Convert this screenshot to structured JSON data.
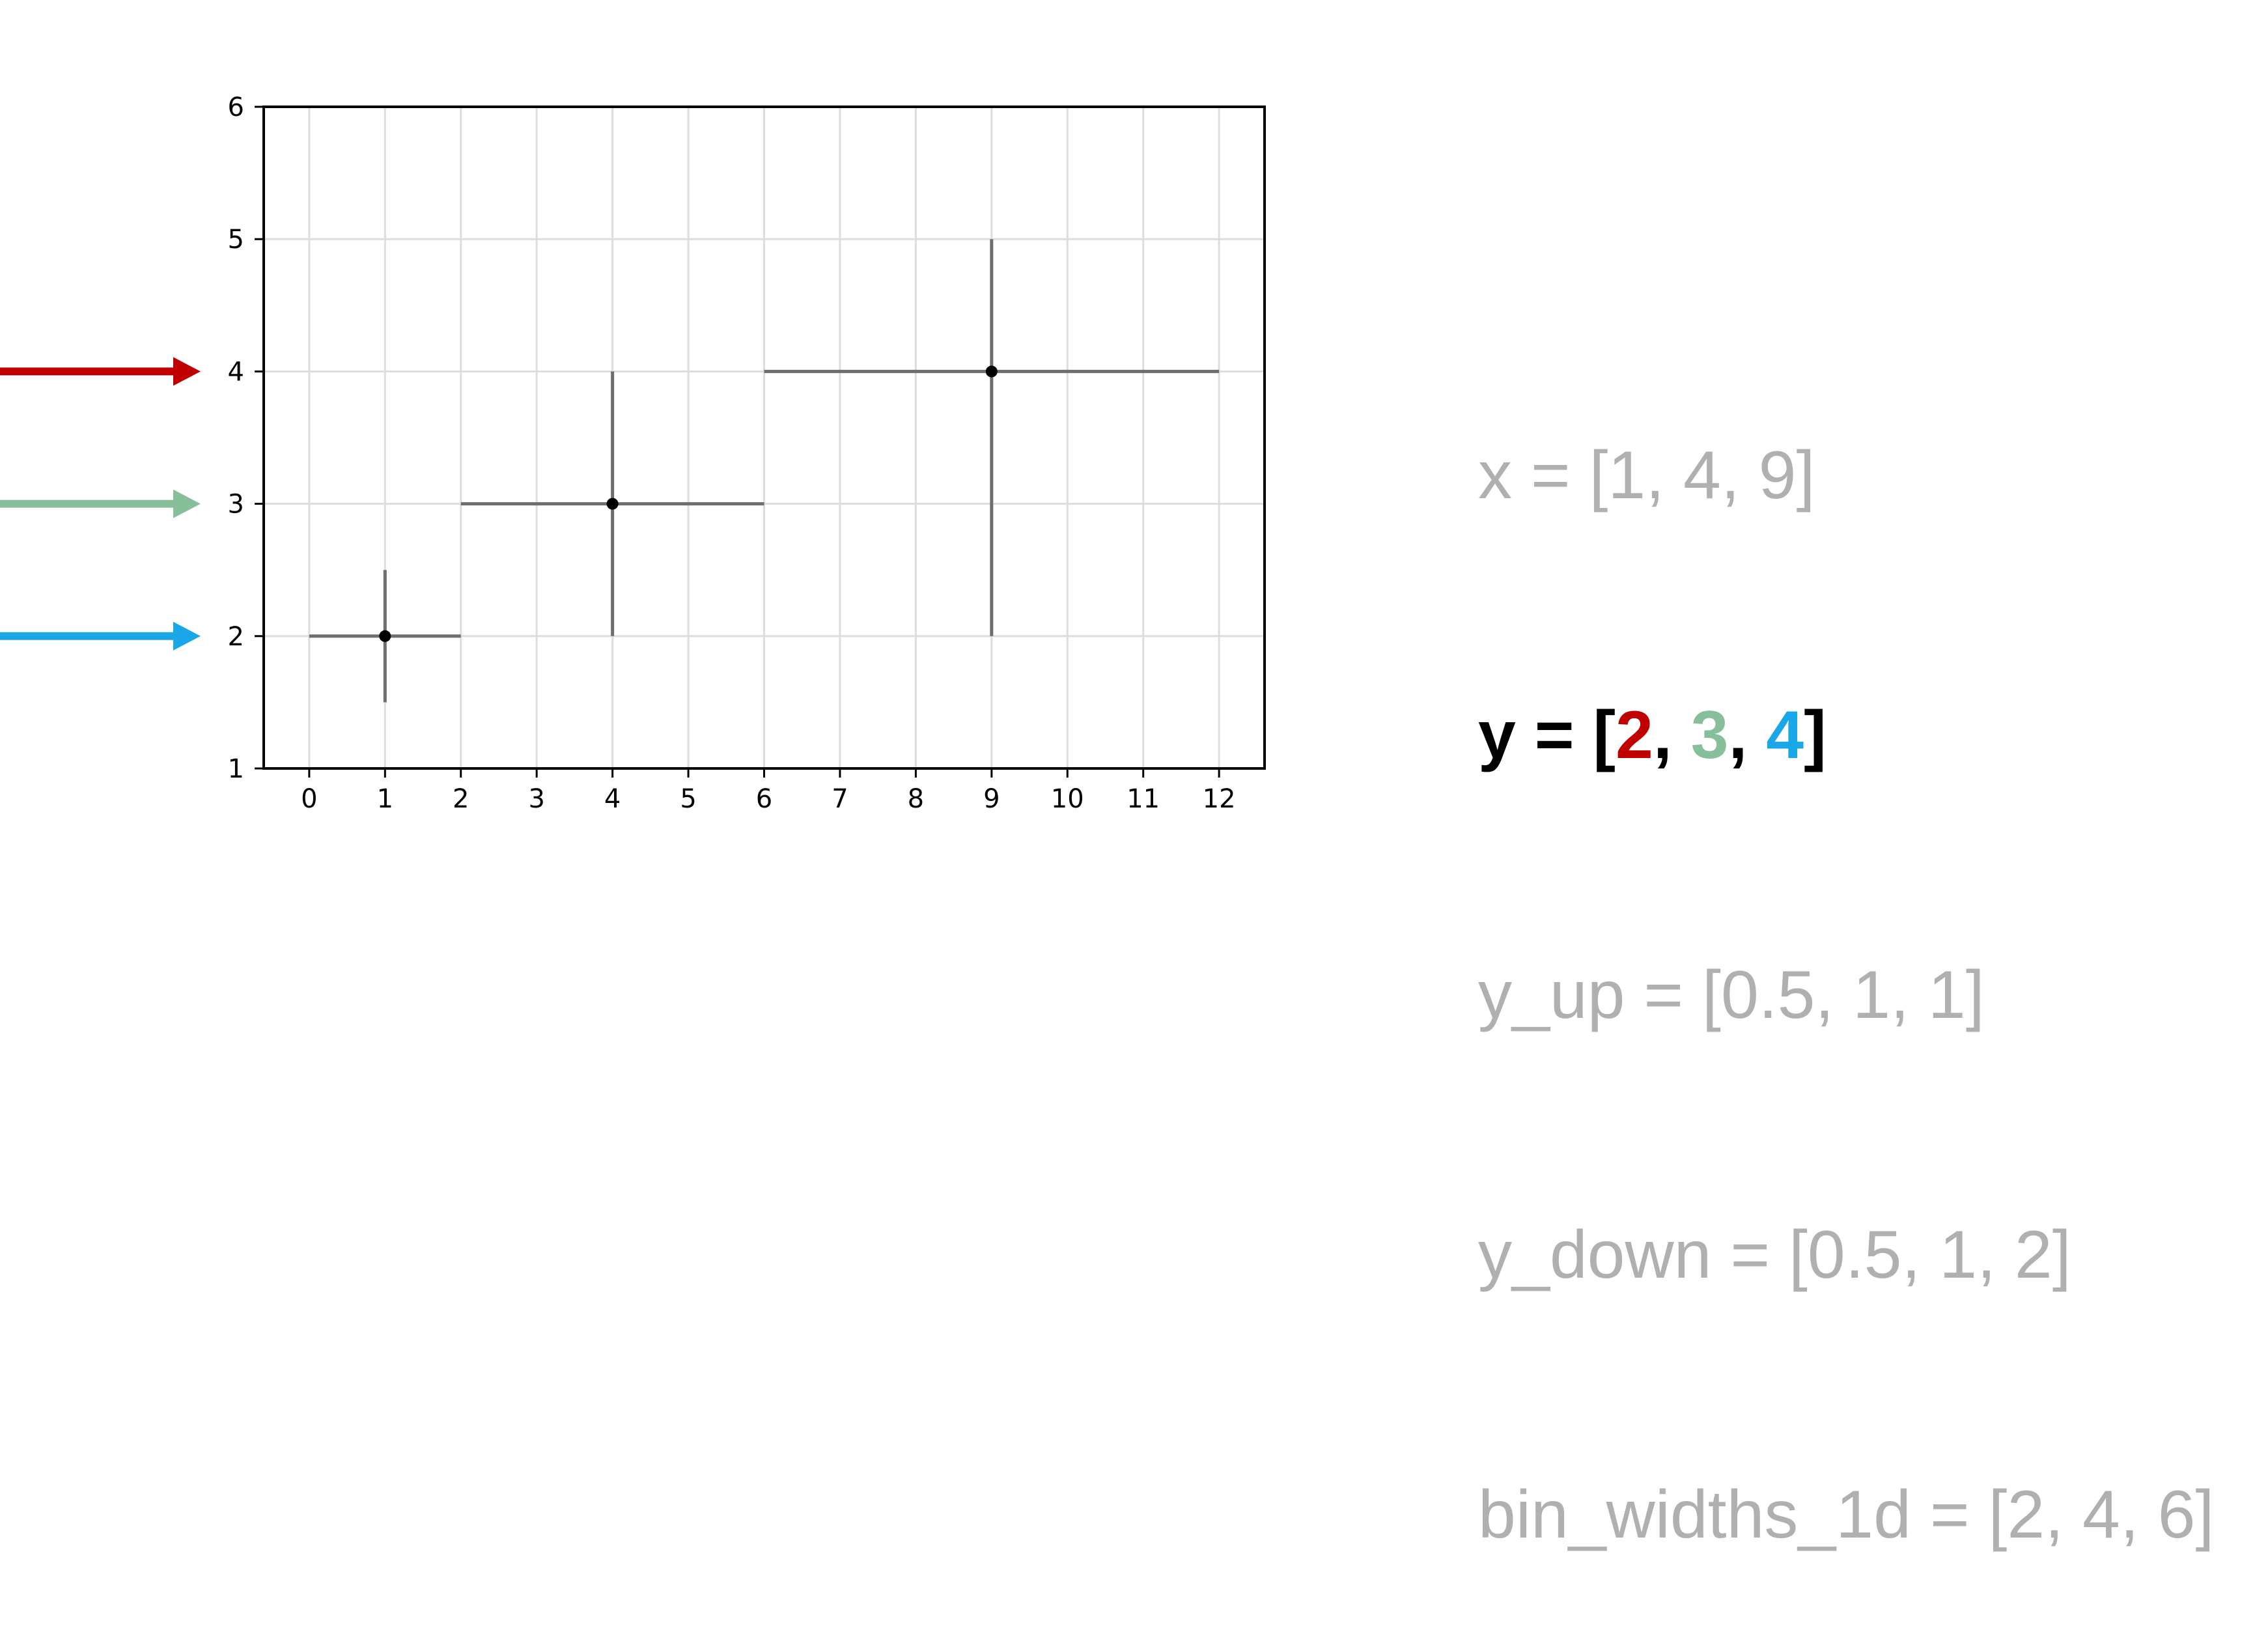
{
  "chart_data": {
    "type": "scatter",
    "title": "",
    "xlabel": "",
    "ylabel": "",
    "xlim": [
      -0.6,
      12.6
    ],
    "ylim": [
      1,
      6
    ],
    "xticks": [
      0,
      1,
      2,
      3,
      4,
      5,
      6,
      7,
      8,
      9,
      10,
      11,
      12
    ],
    "yticks": [
      1,
      2,
      3,
      4,
      5,
      6
    ],
    "grid": true,
    "points": [
      {
        "x": 1,
        "y": 2,
        "x_low": 0,
        "x_high": 2,
        "y_low": 1.5,
        "y_high": 2.5
      },
      {
        "x": 4,
        "y": 3,
        "x_low": 2,
        "x_high": 6,
        "y_low": 2,
        "y_high": 4
      },
      {
        "x": 9,
        "y": 4,
        "x_low": 6,
        "x_high": 12,
        "y_low": 2,
        "y_high": 5
      }
    ],
    "arrows": [
      {
        "y": 4,
        "color": "#c00000"
      },
      {
        "y": 3,
        "color": "#88bf9b"
      },
      {
        "y": 2,
        "color": "#1aa7e8"
      }
    ]
  },
  "code": {
    "x_line": "x = [1, 4, 9]",
    "y_prefix": "y = [",
    "y_val1": "2",
    "y_val2": "3",
    "y_val3": "4",
    "y_sep": ", ",
    "y_suffix": "]",
    "y_up_line": "y_up = [0.5, 1, 1]",
    "y_down_line": "y_down = [0.5, 1, 2]",
    "bin_widths_line": "bin_widths_1d = [2, 4, 6]"
  },
  "colors": {
    "red": "#c00000",
    "green": "#88bf9b",
    "blue": "#1aa7e8",
    "inactive_text": "#b0b0b0",
    "errorbar": "#6e6e6e",
    "grid": "#dddddd"
  }
}
